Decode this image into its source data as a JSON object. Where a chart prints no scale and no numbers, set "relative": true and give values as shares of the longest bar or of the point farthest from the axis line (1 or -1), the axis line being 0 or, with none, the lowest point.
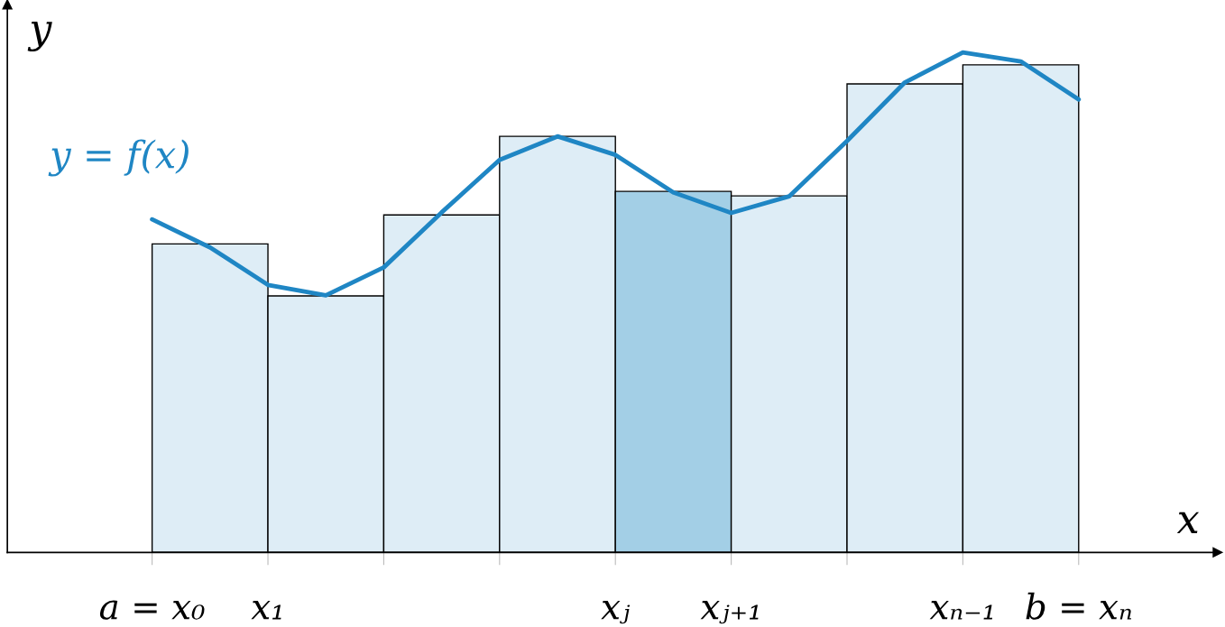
{
  "chart_data": {
    "type": "bar",
    "relative": true,
    "xlabel": "x",
    "ylabel": "y",
    "categories": [
      "a = x₀",
      null,
      "x₁",
      null,
      null,
      null,
      null,
      null,
      "xⱼ",
      null,
      "xⱼ₊₁",
      null,
      null,
      null,
      "xₙ₋₁",
      null,
      "b = xₙ"
    ],
    "series": [
      {
        "values": [
          null,
          0.617,
          null,
          0.513,
          null,
          0.675,
          null,
          0.832,
          null,
          0.722,
          null,
          0.713,
          null,
          0.937,
          null,
          0.975,
          null
        ],
        "colors": [
          null,
          "#deedf6",
          null,
          "#deedf6",
          null,
          "#deedf6",
          null,
          "#deedf6",
          null,
          "#a3cfe6",
          null,
          "#deedf6",
          null,
          "#deedf6",
          null,
          "#deedf6",
          null
        ]
      },
      {
        "type": "line",
        "name": "y = f(x)",
        "color": "#1f86c4",
        "values": [
          0.666,
          0.61,
          0.535,
          0.514,
          0.57,
          0.68,
          0.785,
          0.832,
          0.795,
          0.72,
          0.679,
          0.712,
          0.823,
          0.94,
          1.0,
          0.982,
          0.906
        ]
      }
    ]
  }
}
